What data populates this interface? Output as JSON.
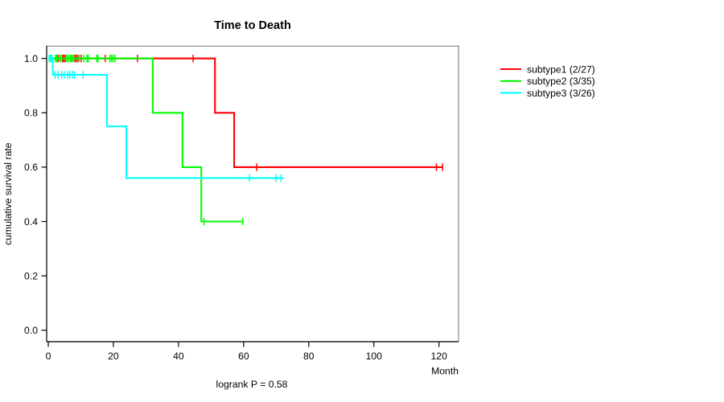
{
  "figure": {
    "title": "Time to Death",
    "annotation": "logrank P = 0.58"
  },
  "chart_data": {
    "type": "line",
    "variant": "kaplan-meier-step",
    "title": "Time to Death",
    "xlabel": "Month",
    "ylabel": "cumulative survival rate",
    "xlim": [
      0,
      126
    ],
    "ylim": [
      -0.04,
      1.05
    ],
    "xticks": [
      "0",
      "20",
      "40",
      "60",
      "80",
      "100",
      "120"
    ],
    "yticks": [
      "0.0",
      "0.2",
      "0.4",
      "0.6",
      "0.8",
      "1.0"
    ],
    "grid": "off",
    "legend_position": "outside-right",
    "annotation": "logrank P = 0.58",
    "box_color": "#7f7f7f",
    "axis_color": "#000000",
    "series": [
      {
        "name": "subtype1 (2/27)",
        "color": "#ff0000",
        "events": 2,
        "n": 27,
        "steps": [
          [
            0,
            1.0
          ],
          [
            51.2,
            1.0
          ],
          [
            51.2,
            0.8
          ],
          [
            57.1,
            0.8
          ],
          [
            57.1,
            0.6
          ],
          [
            121.3,
            0.6
          ]
        ],
        "censor_marks": [
          [
            3,
            1.0
          ],
          [
            4.4,
            1.0
          ],
          [
            4.8,
            1.0
          ],
          [
            5.2,
            1.0
          ],
          [
            8.2,
            1.0
          ],
          [
            8.6,
            1.0
          ],
          [
            9.1,
            1.0
          ],
          [
            10.1,
            1.0
          ],
          [
            17.5,
            1.0
          ],
          [
            27.4,
            1.0
          ],
          [
            44.5,
            1.0
          ],
          [
            64,
            0.6
          ],
          [
            119.2,
            0.6
          ],
          [
            121.1,
            0.6
          ]
        ]
      },
      {
        "name": "subtype2 (3/35)",
        "color": "#00ff00",
        "events": 3,
        "n": 35,
        "steps": [
          [
            0,
            1.0
          ],
          [
            32.1,
            1.0
          ],
          [
            32.1,
            0.8
          ],
          [
            41.2,
            0.8
          ],
          [
            41.2,
            0.6
          ],
          [
            47,
            0.6
          ],
          [
            47,
            0.4
          ],
          [
            60,
            0.4
          ]
        ],
        "censor_marks": [
          [
            0.3,
            1.0
          ],
          [
            2.2,
            1.0
          ],
          [
            2.6,
            1.0
          ],
          [
            3.5,
            1.0
          ],
          [
            3.9,
            1.0
          ],
          [
            5.7,
            1.0
          ],
          [
            6.1,
            1.0
          ],
          [
            6.7,
            1.0
          ],
          [
            7.0,
            1.0
          ],
          [
            7.3,
            1.0
          ],
          [
            7.7,
            1.0
          ],
          [
            9.5,
            1.0
          ],
          [
            10.9,
            1.0
          ],
          [
            11.9,
            1.0
          ],
          [
            12.3,
            1.0
          ],
          [
            14.9,
            1.0
          ],
          [
            15.3,
            1.0
          ],
          [
            18.9,
            1.0
          ],
          [
            19.4,
            1.0
          ],
          [
            19.9,
            1.0
          ],
          [
            20.5,
            1.0
          ],
          [
            47.8,
            0.4
          ],
          [
            59.7,
            0.4
          ]
        ]
      },
      {
        "name": "subtype3 (3/26)",
        "color": "#00ffff",
        "events": 3,
        "n": 26,
        "steps": [
          [
            0,
            1.0
          ],
          [
            1.4,
            1.0
          ],
          [
            1.4,
            0.94
          ],
          [
            18,
            0.94
          ],
          [
            18,
            0.75
          ],
          [
            24,
            0.75
          ],
          [
            24,
            0.56
          ],
          [
            72.4,
            0.56
          ]
        ],
        "censor_marks": [
          [
            0.4,
            1.0
          ],
          [
            0.8,
            1.0
          ],
          [
            1.2,
            1.0
          ],
          [
            2.1,
            0.94
          ],
          [
            3.0,
            0.94
          ],
          [
            4.1,
            0.94
          ],
          [
            4.9,
            0.94
          ],
          [
            6.0,
            0.94
          ],
          [
            6.6,
            0.94
          ],
          [
            7.4,
            0.94
          ],
          [
            8.0,
            0.94
          ],
          [
            10.7,
            0.94
          ],
          [
            61.8,
            0.56
          ],
          [
            69.9,
            0.56
          ],
          [
            71.5,
            0.56
          ]
        ]
      }
    ],
    "legend": [
      {
        "label": "subtype1 (2/27)",
        "color": "#ff0000"
      },
      {
        "label": "subtype2 (3/35)",
        "color": "#00ff00"
      },
      {
        "label": "subtype3 (3/26)",
        "color": "#00ffff"
      }
    ]
  }
}
